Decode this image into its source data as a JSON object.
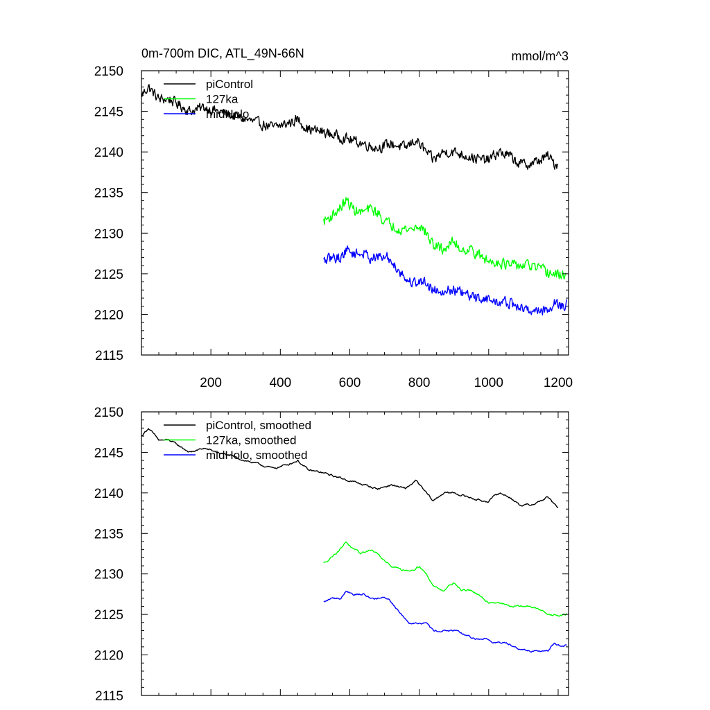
{
  "figure": {
    "title_left": "0m-700m DIC, ATL_49N-66N",
    "title_right": "mmol/m^3"
  },
  "chart_data": [
    {
      "type": "line",
      "panel": "top",
      "title": "0m-700m DIC, ATL_49N-66N",
      "units": "mmol/m^3",
      "xlabel": "",
      "ylabel": "",
      "xlim": [
        0,
        1230
      ],
      "ylim": [
        2115,
        2150
      ],
      "x_ticks": [
        200,
        400,
        600,
        800,
        1000,
        1200
      ],
      "x_tick_labels": [
        "200",
        "400",
        "600",
        "800",
        "1000",
        "1200"
      ],
      "y_ticks": [
        2115,
        2120,
        2125,
        2130,
        2135,
        2140,
        2145,
        2150
      ],
      "y_tick_labels": [
        "2115",
        "2120",
        "2125",
        "2130",
        "2135",
        "2140",
        "2145",
        "2150"
      ],
      "legend_position": "top-left",
      "noise": 0.9,
      "series": [
        {
          "name": "piControl",
          "color": "#000000",
          "points": [
            [
              0,
              2147
            ],
            [
              20,
              2148
            ],
            [
              50,
              2146.5
            ],
            [
              80,
              2146.5
            ],
            [
              100,
              2146
            ],
            [
              140,
              2145
            ],
            [
              180,
              2145.5
            ],
            [
              220,
              2145
            ],
            [
              260,
              2144.5
            ],
            [
              300,
              2144
            ],
            [
              340,
              2143.5
            ],
            [
              380,
              2143
            ],
            [
              420,
              2143.5
            ],
            [
              450,
              2144
            ],
            [
              480,
              2142.8
            ],
            [
              520,
              2142.5
            ],
            [
              560,
              2142
            ],
            [
              600,
              2141.5
            ],
            [
              640,
              2141
            ],
            [
              680,
              2140.5
            ],
            [
              720,
              2141
            ],
            [
              760,
              2140.5
            ],
            [
              790,
              2141.5
            ],
            [
              820,
              2140
            ],
            [
              840,
              2139
            ],
            [
              870,
              2140
            ],
            [
              900,
              2140
            ],
            [
              940,
              2139.5
            ],
            [
              980,
              2139
            ],
            [
              1000,
              2139
            ],
            [
              1030,
              2140
            ],
            [
              1060,
              2139.5
            ],
            [
              1090,
              2138.5
            ],
            [
              1120,
              2138.5
            ],
            [
              1150,
              2139
            ],
            [
              1170,
              2139.5
            ],
            [
              1190,
              2138.5
            ],
            [
              1200,
              2138.5
            ]
          ]
        },
        {
          "name": "127ka",
          "color": "#00ff00",
          "points": [
            [
              525,
              2131.5
            ],
            [
              545,
              2132
            ],
            [
              570,
              2133
            ],
            [
              590,
              2134
            ],
            [
              610,
              2133
            ],
            [
              630,
              2132.5
            ],
            [
              660,
              2133
            ],
            [
              680,
              2132.5
            ],
            [
              700,
              2131.5
            ],
            [
              720,
              2131
            ],
            [
              750,
              2130.5
            ],
            [
              780,
              2130.5
            ],
            [
              800,
              2131
            ],
            [
              820,
              2130
            ],
            [
              840,
              2128.5
            ],
            [
              870,
              2128
            ],
            [
              900,
              2129
            ],
            [
              920,
              2128
            ],
            [
              950,
              2128
            ],
            [
              980,
              2127
            ],
            [
              1000,
              2126.5
            ],
            [
              1030,
              2126.5
            ],
            [
              1060,
              2126
            ],
            [
              1090,
              2126
            ],
            [
              1120,
              2126
            ],
            [
              1150,
              2125.5
            ],
            [
              1180,
              2125
            ],
            [
              1200,
              2124.8
            ],
            [
              1225,
              2125
            ]
          ]
        },
        {
          "name": "midHolo",
          "color": "#0000ff",
          "points": [
            [
              525,
              2126.5
            ],
            [
              550,
              2127
            ],
            [
              575,
              2127
            ],
            [
              590,
              2128
            ],
            [
              610,
              2127.5
            ],
            [
              640,
              2127.5
            ],
            [
              660,
              2127
            ],
            [
              690,
              2127
            ],
            [
              710,
              2127
            ],
            [
              730,
              2126
            ],
            [
              750,
              2125
            ],
            [
              770,
              2124
            ],
            [
              800,
              2124
            ],
            [
              820,
              2124
            ],
            [
              840,
              2123
            ],
            [
              870,
              2123
            ],
            [
              900,
              2123
            ],
            [
              930,
              2122.5
            ],
            [
              960,
              2122
            ],
            [
              990,
              2122
            ],
            [
              1020,
              2121.5
            ],
            [
              1050,
              2121.5
            ],
            [
              1080,
              2121
            ],
            [
              1110,
              2120.5
            ],
            [
              1140,
              2120.5
            ],
            [
              1170,
              2120.5
            ],
            [
              1190,
              2121.5
            ],
            [
              1210,
              2121
            ],
            [
              1225,
              2121.2
            ]
          ]
        }
      ]
    },
    {
      "type": "line",
      "panel": "bottom",
      "title": "",
      "xlabel": "",
      "ylabel": "",
      "xlim": [
        0,
        1230
      ],
      "ylim": [
        2115,
        2150
      ],
      "x_ticks": [
        200,
        400,
        600,
        800,
        1000,
        1200
      ],
      "x_tick_labels": [],
      "y_ticks": [
        2115,
        2120,
        2125,
        2130,
        2135,
        2140,
        2145,
        2150
      ],
      "y_tick_labels": [
        "2115",
        "2120",
        "2125",
        "2130",
        "2135",
        "2140",
        "2145",
        "2150"
      ],
      "legend_position": "top-left",
      "noise": 0.35,
      "series": [
        {
          "name": "piControl, smoothed",
          "color": "#000000",
          "points": [
            [
              0,
              2147
            ],
            [
              20,
              2148
            ],
            [
              50,
              2146.5
            ],
            [
              80,
              2146.5
            ],
            [
              100,
              2146
            ],
            [
              140,
              2145
            ],
            [
              180,
              2145.5
            ],
            [
              220,
              2145
            ],
            [
              260,
              2144.5
            ],
            [
              300,
              2144
            ],
            [
              340,
              2143.5
            ],
            [
              380,
              2143
            ],
            [
              420,
              2143.5
            ],
            [
              450,
              2144
            ],
            [
              480,
              2142.8
            ],
            [
              520,
              2142.5
            ],
            [
              560,
              2142
            ],
            [
              600,
              2141.5
            ],
            [
              640,
              2141
            ],
            [
              680,
              2140.5
            ],
            [
              720,
              2141
            ],
            [
              760,
              2140.5
            ],
            [
              790,
              2141.5
            ],
            [
              820,
              2140
            ],
            [
              840,
              2139
            ],
            [
              870,
              2140
            ],
            [
              900,
              2140
            ],
            [
              940,
              2139.5
            ],
            [
              980,
              2139
            ],
            [
              1000,
              2139
            ],
            [
              1030,
              2140
            ],
            [
              1060,
              2139.5
            ],
            [
              1090,
              2138.5
            ],
            [
              1120,
              2138.5
            ],
            [
              1150,
              2139
            ],
            [
              1170,
              2139.5
            ],
            [
              1190,
              2138.5
            ],
            [
              1200,
              2138.2
            ]
          ]
        },
        {
          "name": "127ka, smoothed",
          "color": "#00ff00",
          "points": [
            [
              525,
              2131.3
            ],
            [
              545,
              2132
            ],
            [
              570,
              2133
            ],
            [
              590,
              2134
            ],
            [
              610,
              2133
            ],
            [
              630,
              2132.5
            ],
            [
              660,
              2133
            ],
            [
              680,
              2132.5
            ],
            [
              700,
              2131.5
            ],
            [
              720,
              2131
            ],
            [
              750,
              2130.5
            ],
            [
              780,
              2130.5
            ],
            [
              800,
              2131
            ],
            [
              820,
              2130
            ],
            [
              840,
              2128.5
            ],
            [
              870,
              2128
            ],
            [
              900,
              2129
            ],
            [
              920,
              2128
            ],
            [
              950,
              2128
            ],
            [
              980,
              2127
            ],
            [
              1000,
              2126.5
            ],
            [
              1030,
              2126.5
            ],
            [
              1060,
              2126
            ],
            [
              1090,
              2126
            ],
            [
              1120,
              2126
            ],
            [
              1150,
              2125.5
            ],
            [
              1180,
              2125
            ],
            [
              1200,
              2124.8
            ],
            [
              1225,
              2125
            ]
          ]
        },
        {
          "name": "midHolo, smoothed",
          "color": "#0000ff",
          "points": [
            [
              525,
              2126.5
            ],
            [
              550,
              2127
            ],
            [
              575,
              2127
            ],
            [
              590,
              2128
            ],
            [
              610,
              2127.5
            ],
            [
              640,
              2127.5
            ],
            [
              660,
              2127
            ],
            [
              690,
              2127
            ],
            [
              710,
              2127
            ],
            [
              730,
              2126
            ],
            [
              750,
              2125
            ],
            [
              770,
              2124
            ],
            [
              800,
              2124
            ],
            [
              820,
              2124
            ],
            [
              840,
              2123
            ],
            [
              870,
              2123
            ],
            [
              900,
              2123
            ],
            [
              930,
              2122.5
            ],
            [
              960,
              2122
            ],
            [
              990,
              2122
            ],
            [
              1020,
              2121.5
            ],
            [
              1050,
              2121.5
            ],
            [
              1080,
              2121
            ],
            [
              1110,
              2120.5
            ],
            [
              1140,
              2120.5
            ],
            [
              1170,
              2120.5
            ],
            [
              1190,
              2121.5
            ],
            [
              1210,
              2121
            ],
            [
              1225,
              2121.2
            ]
          ]
        }
      ]
    }
  ]
}
